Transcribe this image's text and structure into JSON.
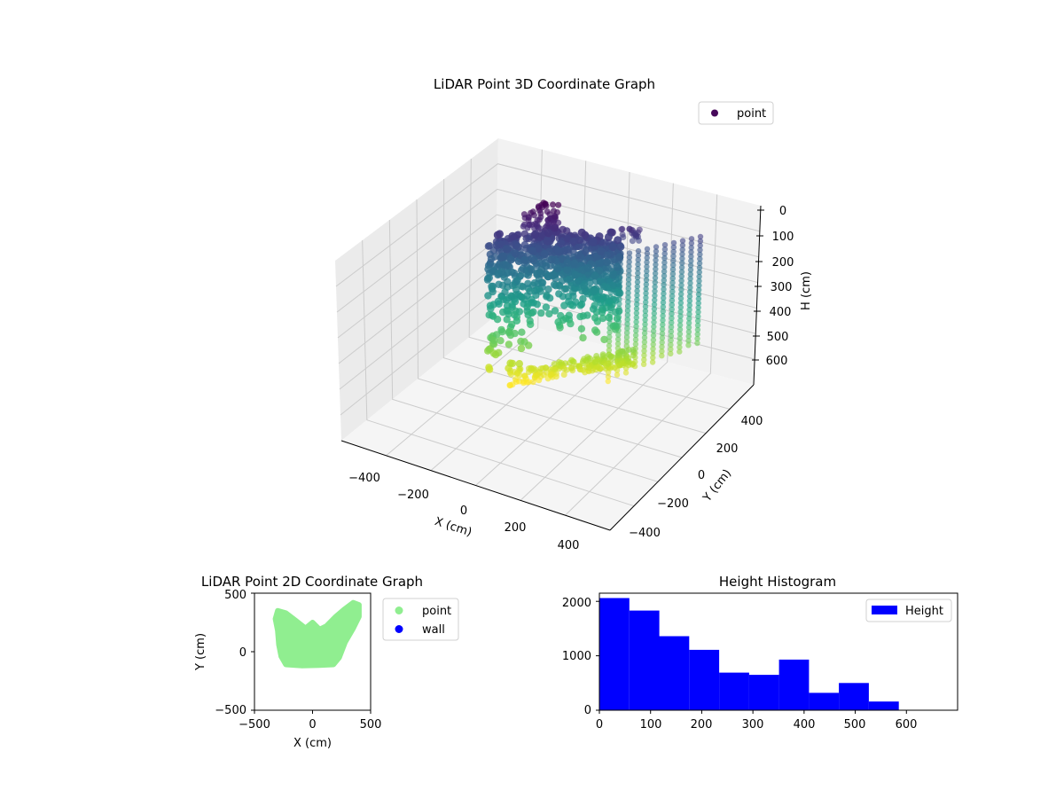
{
  "chart_data": [
    {
      "type": "scatter3d",
      "title": "LiDAR Point 3D Coordinate Graph",
      "xlabel": "X (cm)",
      "ylabel": "Y (cm)",
      "zlabel": "H (cm)",
      "x_ticks": [
        "−400",
        "−200",
        "0",
        "200",
        "400"
      ],
      "y_ticks": [
        "−400",
        "−200",
        "0",
        "200",
        "400"
      ],
      "z_ticks": [
        "0",
        "100",
        "200",
        "300",
        "400",
        "500",
        "600"
      ],
      "xlim": [
        -450,
        450
      ],
      "ylim": [
        -450,
        450
      ],
      "zlim": [
        0,
        650
      ],
      "z_inverted": true,
      "legend": [
        "point"
      ],
      "legend_position": "top-right",
      "colormap": "viridis",
      "grid": true
    },
    {
      "type": "scatter",
      "title": "LiDAR Point 2D Coordinate Graph",
      "xlabel": "X (cm)",
      "ylabel": "Y (cm)",
      "x_ticks": [
        "−500",
        "0",
        "500"
      ],
      "y_ticks": [
        "−500",
        "0",
        "500"
      ],
      "xlim": [
        -500,
        500
      ],
      "ylim": [
        -500,
        500
      ],
      "series": [
        {
          "name": "point",
          "color": "#90ee90"
        },
        {
          "name": "wall",
          "color": "#0000ff"
        }
      ],
      "legend_position": "outside-right"
    },
    {
      "type": "bar",
      "title": "Height Histogram",
      "bin_edges": [
        0,
        58.5,
        117,
        175.5,
        234,
        292.5,
        351,
        409.5,
        468,
        526.5,
        585
      ],
      "values": [
        2060,
        1830,
        1360,
        1110,
        690,
        650,
        930,
        320,
        500,
        160
      ],
      "xlim": [
        0,
        700
      ],
      "ylim": [
        0,
        2150
      ],
      "x_ticks": [
        "0",
        "100",
        "200",
        "300",
        "400",
        "500",
        "600"
      ],
      "y_ticks": [
        "0",
        "1000",
        "2000"
      ],
      "series": [
        {
          "name": "Height",
          "color": "#0000ff"
        }
      ],
      "legend_position": "top-right"
    }
  ]
}
